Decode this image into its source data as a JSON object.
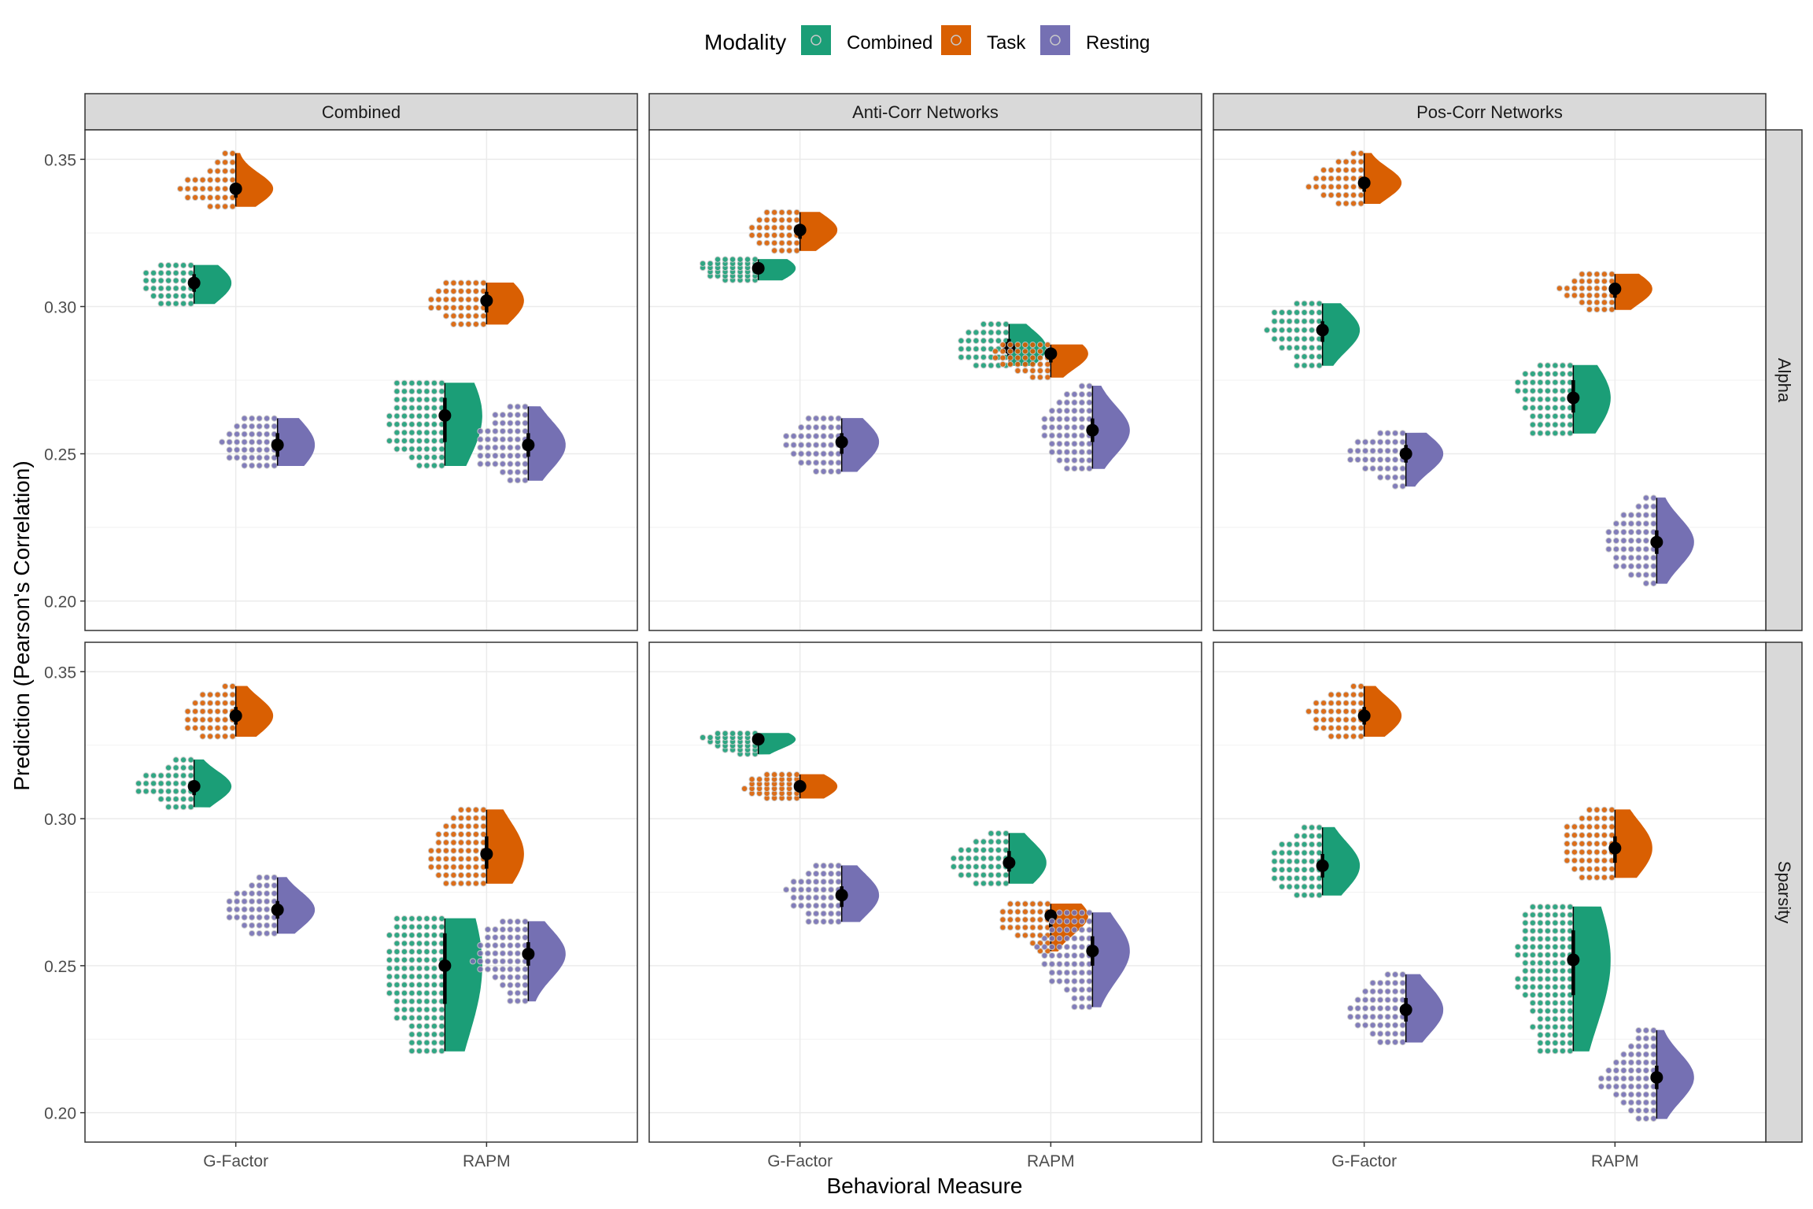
{
  "chart_data": {
    "type": "raincloud",
    "xlabel": "Behavioral Measure",
    "ylabel": "Prediction (Pearson's Correlation)",
    "legend": {
      "title": "Modality",
      "position": "top",
      "entries": [
        {
          "name": "Combined",
          "color": "#1b9e77"
        },
        {
          "name": "Task",
          "color": "#d95f02"
        },
        {
          "name": "Resting",
          "color": "#7570b3"
        }
      ]
    },
    "facet_columns": [
      "Combined",
      "Anti-Corr Networks",
      "Pos-Corr Networks"
    ],
    "facet_rows": [
      "Alpha",
      "Sparsity"
    ],
    "categories": [
      "G-Factor",
      "RAPM"
    ],
    "ylim": [
      0.19,
      0.36
    ],
    "yticks": [
      0.2,
      0.25,
      0.3,
      0.35
    ],
    "ytick_labels": [
      "0.20",
      "0.25",
      "0.30",
      "0.35"
    ],
    "grid": true,
    "panels": [
      {
        "col": 0,
        "row": 0,
        "groups": [
          {
            "category": "G-Factor",
            "modality": "Combined",
            "median": 0.308,
            "q1": 0.305,
            "q3": 0.311,
            "min": 0.301,
            "max": 0.314
          },
          {
            "category": "G-Factor",
            "modality": "Task",
            "median": 0.34,
            "q1": 0.337,
            "q3": 0.342,
            "min": 0.334,
            "max": 0.352
          },
          {
            "category": "G-Factor",
            "modality": "Resting",
            "median": 0.253,
            "q1": 0.249,
            "q3": 0.257,
            "min": 0.246,
            "max": 0.262
          },
          {
            "category": "RAPM",
            "modality": "Combined",
            "median": 0.263,
            "q1": 0.254,
            "q3": 0.269,
            "min": 0.246,
            "max": 0.274
          },
          {
            "category": "RAPM",
            "modality": "Task",
            "median": 0.302,
            "q1": 0.298,
            "q3": 0.305,
            "min": 0.294,
            "max": 0.308
          },
          {
            "category": "RAPM",
            "modality": "Resting",
            "median": 0.253,
            "q1": 0.249,
            "q3": 0.257,
            "min": 0.241,
            "max": 0.266
          }
        ]
      },
      {
        "col": 1,
        "row": 0,
        "groups": [
          {
            "category": "G-Factor",
            "modality": "Combined",
            "median": 0.313,
            "q1": 0.311,
            "q3": 0.315,
            "min": 0.309,
            "max": 0.316
          },
          {
            "category": "G-Factor",
            "modality": "Task",
            "median": 0.326,
            "q1": 0.323,
            "q3": 0.328,
            "min": 0.319,
            "max": 0.332
          },
          {
            "category": "G-Factor",
            "modality": "Resting",
            "median": 0.254,
            "q1": 0.25,
            "q3": 0.257,
            "min": 0.244,
            "max": 0.262
          },
          {
            "category": "RAPM",
            "modality": "Combined",
            "median": 0.286,
            "q1": 0.283,
            "q3": 0.289,
            "min": 0.28,
            "max": 0.294
          },
          {
            "category": "RAPM",
            "modality": "Task",
            "median": 0.284,
            "q1": 0.281,
            "q3": 0.286,
            "min": 0.276,
            "max": 0.287
          },
          {
            "category": "RAPM",
            "modality": "Resting",
            "median": 0.258,
            "q1": 0.254,
            "q3": 0.262,
            "min": 0.245,
            "max": 0.273
          }
        ]
      },
      {
        "col": 2,
        "row": 0,
        "groups": [
          {
            "category": "G-Factor",
            "modality": "Combined",
            "median": 0.292,
            "q1": 0.288,
            "q3": 0.295,
            "min": 0.28,
            "max": 0.301
          },
          {
            "category": "G-Factor",
            "modality": "Task",
            "median": 0.342,
            "q1": 0.339,
            "q3": 0.344,
            "min": 0.335,
            "max": 0.352
          },
          {
            "category": "G-Factor",
            "modality": "Resting",
            "median": 0.25,
            "q1": 0.247,
            "q3": 0.253,
            "min": 0.239,
            "max": 0.257
          },
          {
            "category": "RAPM",
            "modality": "Combined",
            "median": 0.269,
            "q1": 0.264,
            "q3": 0.275,
            "min": 0.257,
            "max": 0.28
          },
          {
            "category": "RAPM",
            "modality": "Task",
            "median": 0.306,
            "q1": 0.303,
            "q3": 0.308,
            "min": 0.299,
            "max": 0.311
          },
          {
            "category": "RAPM",
            "modality": "Resting",
            "median": 0.22,
            "q1": 0.216,
            "q3": 0.224,
            "min": 0.206,
            "max": 0.235
          }
        ]
      },
      {
        "col": 0,
        "row": 1,
        "groups": [
          {
            "category": "G-Factor",
            "modality": "Combined",
            "median": 0.311,
            "q1": 0.308,
            "q3": 0.313,
            "min": 0.304,
            "max": 0.32
          },
          {
            "category": "G-Factor",
            "modality": "Task",
            "median": 0.335,
            "q1": 0.332,
            "q3": 0.338,
            "min": 0.328,
            "max": 0.345
          },
          {
            "category": "G-Factor",
            "modality": "Resting",
            "median": 0.269,
            "q1": 0.266,
            "q3": 0.272,
            "min": 0.261,
            "max": 0.28
          },
          {
            "category": "RAPM",
            "modality": "Combined",
            "median": 0.25,
            "q1": 0.237,
            "q3": 0.261,
            "min": 0.221,
            "max": 0.266
          },
          {
            "category": "RAPM",
            "modality": "Task",
            "median": 0.288,
            "q1": 0.283,
            "q3": 0.294,
            "min": 0.278,
            "max": 0.303
          },
          {
            "category": "RAPM",
            "modality": "Resting",
            "median": 0.254,
            "q1": 0.25,
            "q3": 0.258,
            "min": 0.238,
            "max": 0.265
          }
        ]
      },
      {
        "col": 1,
        "row": 1,
        "groups": [
          {
            "category": "G-Factor",
            "modality": "Combined",
            "median": 0.327,
            "q1": 0.325,
            "q3": 0.328,
            "min": 0.322,
            "max": 0.329
          },
          {
            "category": "G-Factor",
            "modality": "Task",
            "median": 0.311,
            "q1": 0.309,
            "q3": 0.313,
            "min": 0.307,
            "max": 0.315
          },
          {
            "category": "G-Factor",
            "modality": "Resting",
            "median": 0.274,
            "q1": 0.27,
            "q3": 0.277,
            "min": 0.265,
            "max": 0.284
          },
          {
            "category": "RAPM",
            "modality": "Combined",
            "median": 0.285,
            "q1": 0.282,
            "q3": 0.289,
            "min": 0.278,
            "max": 0.295
          },
          {
            "category": "RAPM",
            "modality": "Task",
            "median": 0.267,
            "q1": 0.263,
            "q3": 0.269,
            "min": 0.255,
            "max": 0.271
          },
          {
            "category": "RAPM",
            "modality": "Resting",
            "median": 0.255,
            "q1": 0.25,
            "q3": 0.26,
            "min": 0.236,
            "max": 0.268
          }
        ]
      },
      {
        "col": 2,
        "row": 1,
        "groups": [
          {
            "category": "G-Factor",
            "modality": "Combined",
            "median": 0.284,
            "q1": 0.28,
            "q3": 0.288,
            "min": 0.274,
            "max": 0.297
          },
          {
            "category": "G-Factor",
            "modality": "Task",
            "median": 0.335,
            "q1": 0.332,
            "q3": 0.338,
            "min": 0.328,
            "max": 0.345
          },
          {
            "category": "G-Factor",
            "modality": "Resting",
            "median": 0.235,
            "q1": 0.231,
            "q3": 0.239,
            "min": 0.224,
            "max": 0.247
          },
          {
            "category": "RAPM",
            "modality": "Combined",
            "median": 0.252,
            "q1": 0.24,
            "q3": 0.262,
            "min": 0.221,
            "max": 0.27
          },
          {
            "category": "RAPM",
            "modality": "Task",
            "median": 0.29,
            "q1": 0.285,
            "q3": 0.294,
            "min": 0.28,
            "max": 0.303
          },
          {
            "category": "RAPM",
            "modality": "Resting",
            "median": 0.212,
            "q1": 0.208,
            "q3": 0.216,
            "min": 0.198,
            "max": 0.228
          }
        ]
      }
    ]
  }
}
